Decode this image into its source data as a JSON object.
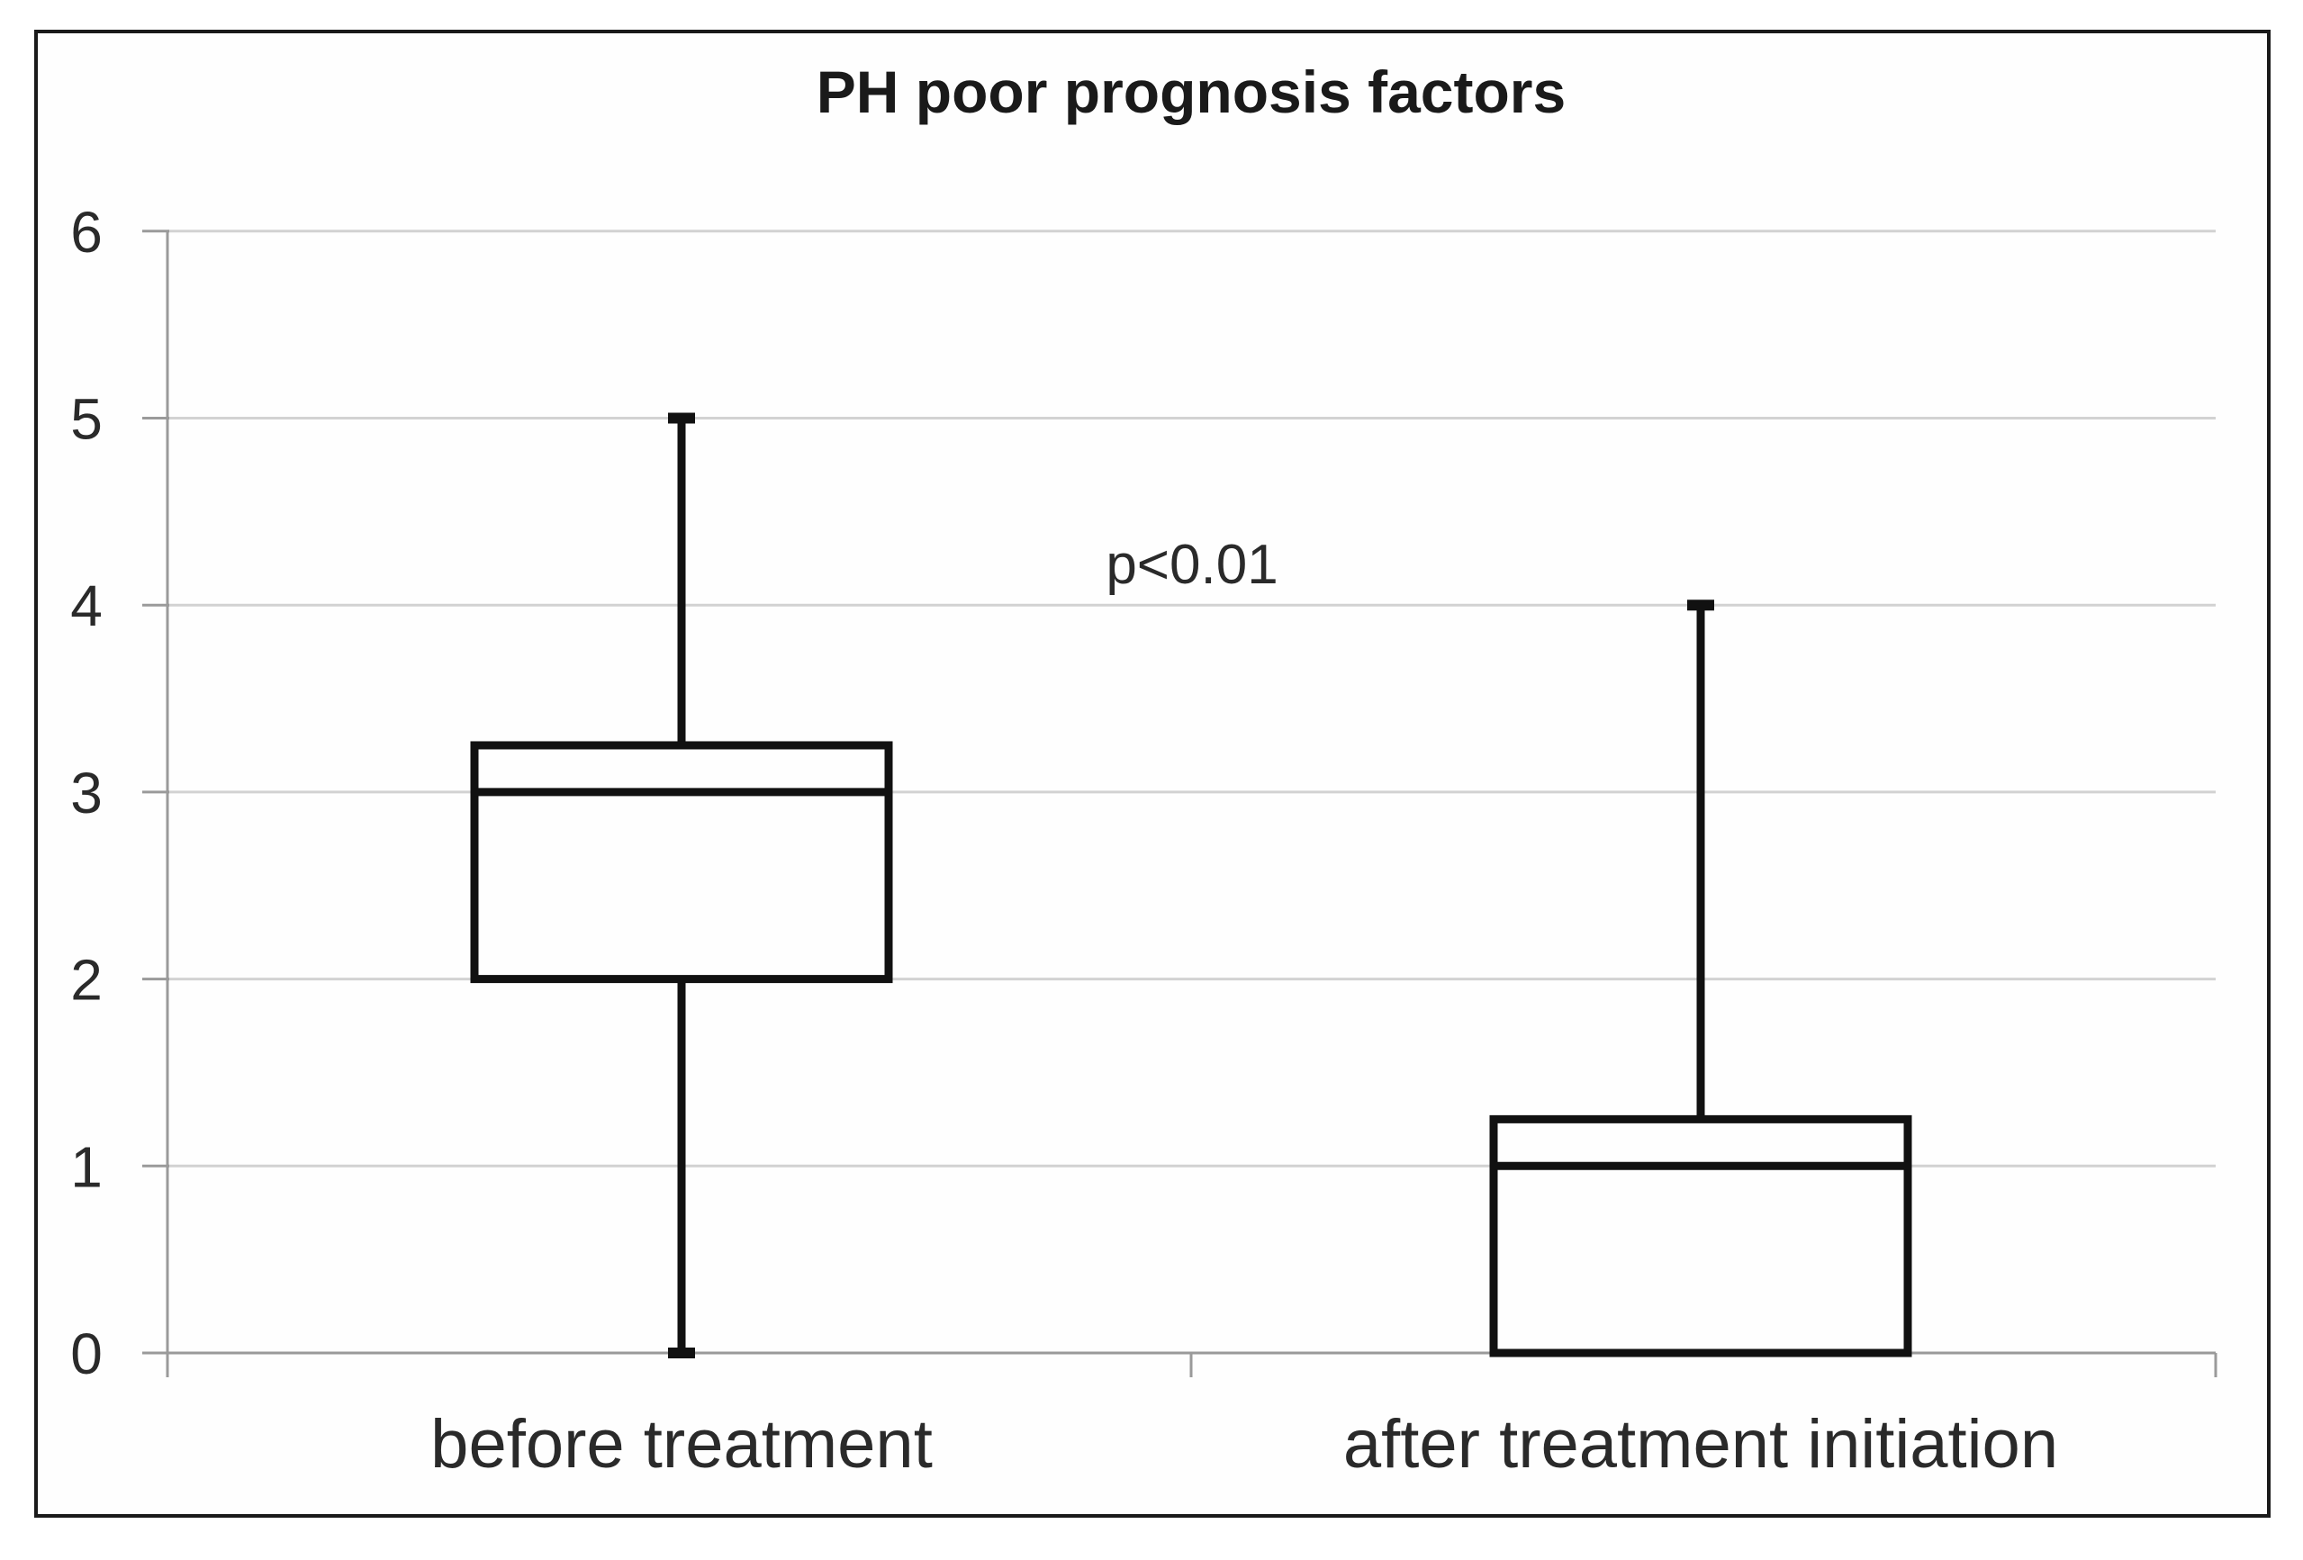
{
  "figure": {
    "background": "#fefefe",
    "border_color": "#1a1a1a"
  },
  "chart_data": {
    "type": "boxplot",
    "title": "PH poor prognosis factors",
    "categories": [
      "before treatment",
      "after treatment initiation"
    ],
    "series": [
      {
        "name": "before treatment",
        "whisker_low": 0,
        "q1": 2,
        "median": 3,
        "q3": 3.25,
        "whisker_high": 5
      },
      {
        "name": "after treatment initiation",
        "whisker_low": 0,
        "q1": 0,
        "median": 1,
        "q3": 1.25,
        "whisker_high": 4
      }
    ],
    "annotation": {
      "text": "p<0.01"
    },
    "xlabel": "",
    "ylabel": "",
    "ylim": [
      0,
      6
    ],
    "yticks": [
      0,
      1,
      2,
      3,
      4,
      5,
      6
    ],
    "grid": true,
    "legend": false,
    "colors": {
      "box_stroke": "#111111",
      "box_fill": "#fefefe",
      "grid": "#d2d2d2",
      "axis": "#9a9a9a",
      "text": "#262626"
    }
  }
}
